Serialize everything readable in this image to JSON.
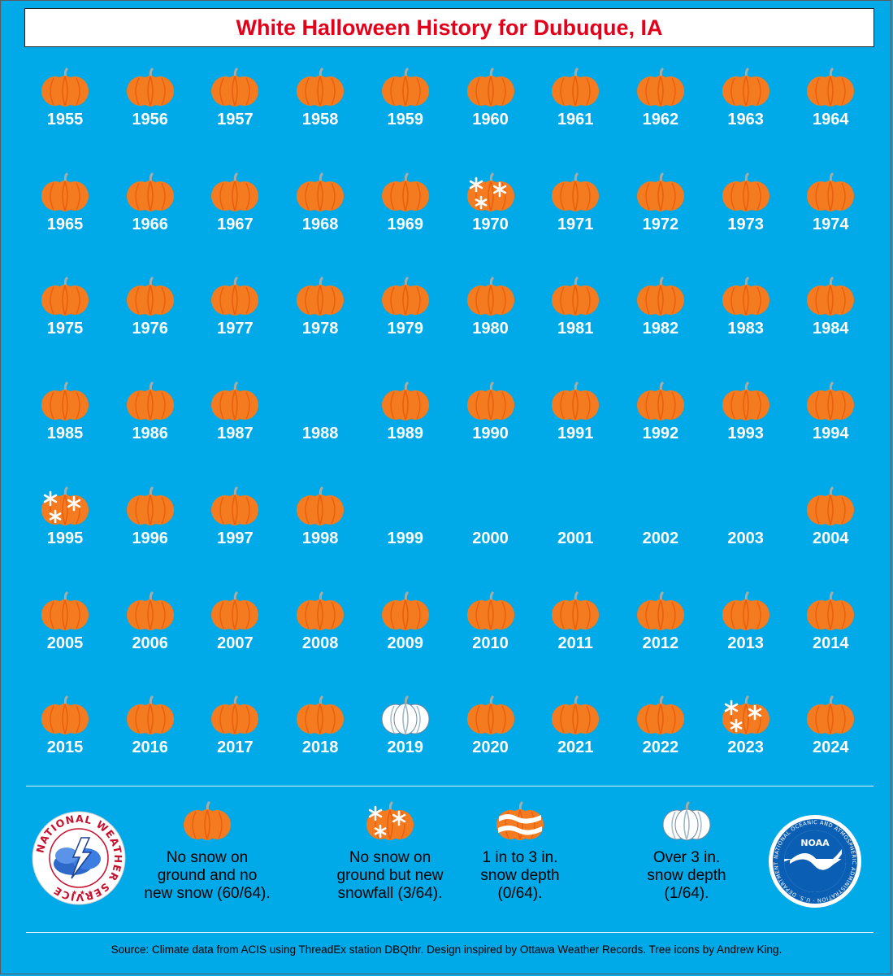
{
  "title": "White Halloween History for Dubuque, IA",
  "colors": {
    "background": "#00a9e8",
    "title": "#e3001b",
    "pumpkin": "#f47b20",
    "pumpkin_rib": "#e8600f",
    "stem": "#a9aba5"
  },
  "years": [
    {
      "year": "1955",
      "status": "no-snow"
    },
    {
      "year": "1956",
      "status": "no-snow"
    },
    {
      "year": "1957",
      "status": "no-snow"
    },
    {
      "year": "1958",
      "status": "no-snow"
    },
    {
      "year": "1959",
      "status": "no-snow"
    },
    {
      "year": "1960",
      "status": "no-snow"
    },
    {
      "year": "1961",
      "status": "no-snow"
    },
    {
      "year": "1962",
      "status": "no-snow"
    },
    {
      "year": "1963",
      "status": "no-snow"
    },
    {
      "year": "1964",
      "status": "no-snow"
    },
    {
      "year": "1965",
      "status": "no-snow"
    },
    {
      "year": "1966",
      "status": "no-snow"
    },
    {
      "year": "1967",
      "status": "no-snow"
    },
    {
      "year": "1968",
      "status": "no-snow"
    },
    {
      "year": "1969",
      "status": "no-snow"
    },
    {
      "year": "1970",
      "status": "snowfall"
    },
    {
      "year": "1971",
      "status": "no-snow"
    },
    {
      "year": "1972",
      "status": "no-snow"
    },
    {
      "year": "1973",
      "status": "no-snow"
    },
    {
      "year": "1974",
      "status": "no-snow"
    },
    {
      "year": "1975",
      "status": "no-snow"
    },
    {
      "year": "1976",
      "status": "no-snow"
    },
    {
      "year": "1977",
      "status": "no-snow"
    },
    {
      "year": "1978",
      "status": "no-snow"
    },
    {
      "year": "1979",
      "status": "no-snow"
    },
    {
      "year": "1980",
      "status": "no-snow"
    },
    {
      "year": "1981",
      "status": "no-snow"
    },
    {
      "year": "1982",
      "status": "no-snow"
    },
    {
      "year": "1983",
      "status": "no-snow"
    },
    {
      "year": "1984",
      "status": "no-snow"
    },
    {
      "year": "1985",
      "status": "no-snow"
    },
    {
      "year": "1986",
      "status": "no-snow"
    },
    {
      "year": "1987",
      "status": "no-snow"
    },
    {
      "year": "1988",
      "status": "missing"
    },
    {
      "year": "1989",
      "status": "no-snow"
    },
    {
      "year": "1990",
      "status": "no-snow"
    },
    {
      "year": "1991",
      "status": "no-snow"
    },
    {
      "year": "1992",
      "status": "no-snow"
    },
    {
      "year": "1993",
      "status": "no-snow"
    },
    {
      "year": "1994",
      "status": "no-snow"
    },
    {
      "year": "1995",
      "status": "snowfall"
    },
    {
      "year": "1996",
      "status": "no-snow"
    },
    {
      "year": "1997",
      "status": "no-snow"
    },
    {
      "year": "1998",
      "status": "no-snow"
    },
    {
      "year": "1999",
      "status": "missing"
    },
    {
      "year": "2000",
      "status": "missing"
    },
    {
      "year": "2001",
      "status": "missing"
    },
    {
      "year": "2002",
      "status": "missing"
    },
    {
      "year": "2003",
      "status": "missing"
    },
    {
      "year": "2004",
      "status": "no-snow"
    },
    {
      "year": "2005",
      "status": "no-snow"
    },
    {
      "year": "2006",
      "status": "no-snow"
    },
    {
      "year": "2007",
      "status": "no-snow"
    },
    {
      "year": "2008",
      "status": "no-snow"
    },
    {
      "year": "2009",
      "status": "no-snow"
    },
    {
      "year": "2010",
      "status": "no-snow"
    },
    {
      "year": "2011",
      "status": "no-snow"
    },
    {
      "year": "2012",
      "status": "no-snow"
    },
    {
      "year": "2013",
      "status": "no-snow"
    },
    {
      "year": "2014",
      "status": "no-snow"
    },
    {
      "year": "2015",
      "status": "no-snow"
    },
    {
      "year": "2016",
      "status": "no-snow"
    },
    {
      "year": "2017",
      "status": "no-snow"
    },
    {
      "year": "2018",
      "status": "no-snow"
    },
    {
      "year": "2019",
      "status": "over-3in"
    },
    {
      "year": "2020",
      "status": "no-snow"
    },
    {
      "year": "2021",
      "status": "no-snow"
    },
    {
      "year": "2022",
      "status": "no-snow"
    },
    {
      "year": "2023",
      "status": "snowfall"
    },
    {
      "year": "2024",
      "status": "no-snow"
    }
  ],
  "legend": [
    {
      "status": "no-snow",
      "lines": [
        "No snow on",
        "ground and no",
        "new snow (60/64)."
      ]
    },
    {
      "status": "snowfall",
      "lines": [
        "No snow on",
        "ground but new",
        "snowfall (3/64)."
      ]
    },
    {
      "status": "1-3in",
      "lines": [
        "1 in to 3 in.",
        "snow depth",
        "(0/64)."
      ]
    },
    {
      "status": "over-3in",
      "lines": [
        "Over 3 in.",
        "snow depth",
        "(1/64)."
      ]
    }
  ],
  "logos": {
    "nws": {
      "name": "nws-logo",
      "text": "NATIONAL WEATHER SERVICE"
    },
    "noaa": {
      "name": "noaa-logo",
      "text": "NOAA",
      "ring_text": "NATIONAL OCEANIC AND ATMOSPHERIC ADMINISTRATION · U.S. DEPARTMENT OF COMMERCE"
    }
  },
  "source": "Source: Climate data from ACIS using ThreadEx station DBQthr. Design inspired by Ottawa Weather Records. Tree icons by Andrew King."
}
